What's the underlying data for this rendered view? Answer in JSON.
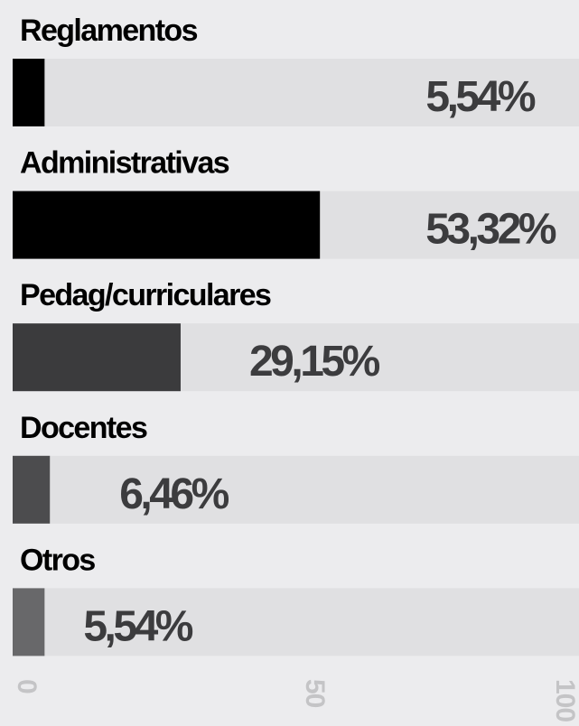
{
  "chart_data": {
    "type": "bar",
    "orientation": "horizontal",
    "categories": [
      "Reglamentos",
      "Administrativas",
      "Pedag/curriculares",
      "Docentes",
      "Otros"
    ],
    "values": [
      5.54,
      53.32,
      29.15,
      6.46,
      5.54
    ],
    "value_labels": [
      "5,54%",
      "53,32%",
      "29,15%",
      "6,46%",
      "5,54%"
    ],
    "colors": [
      "#000000",
      "#000000",
      "#3b3b3d",
      "#4c4c4e",
      "#68686a"
    ],
    "xlim": [
      0,
      100
    ],
    "xticks": [
      0,
      50,
      100
    ]
  }
}
